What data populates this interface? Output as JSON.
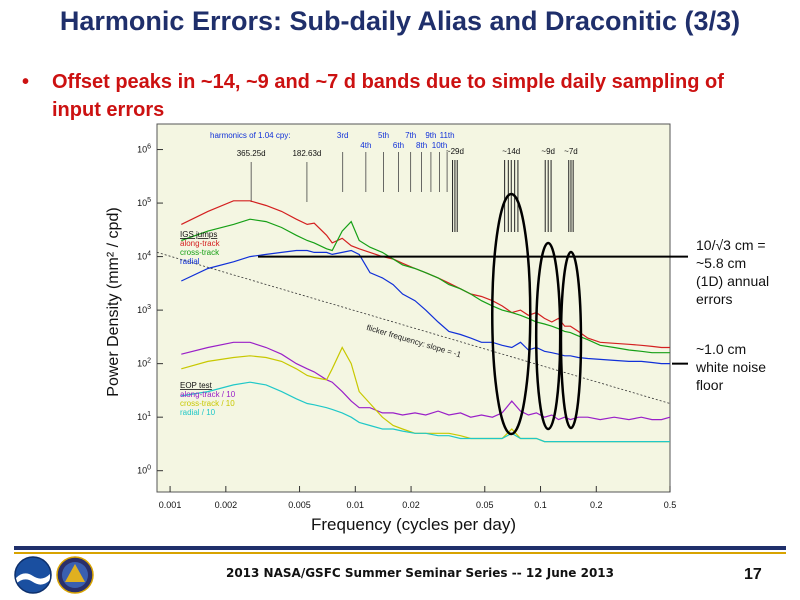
{
  "slide": {
    "title": "Harmonic Errors: Sub-daily Alias and Draconitic (3/3)",
    "bullet_marker": "•",
    "bullet": "Offset peaks in ~14, ~9 and ~7 d bands due to simple daily sampling of input errors",
    "footer": "2013 NASA/GSFC Summer Seminar Series -- 12 June 2013",
    "page_number": "17",
    "logos": [
      "noaa-logo",
      "agency-seal-logo"
    ]
  },
  "annotations": {
    "level_note_lines": [
      "10/√3 cm =",
      "~5.8 cm",
      "(1D) annual",
      "errors"
    ],
    "floor_note_lines": [
      "~1.0 cm",
      "white noise",
      "floor"
    ]
  },
  "chart_data": {
    "type": "line",
    "x_scale": "log",
    "y_scale": "log",
    "xlim": [
      0.00085,
      0.5
    ],
    "ylim": [
      0.4,
      3000000
    ],
    "xlabel": "Frequency (cycles per day)",
    "ylabel": "Power Density  (mm² / cpd)",
    "x_ticks": [
      {
        "value": 0.001,
        "label": "0.001"
      },
      {
        "value": 0.002,
        "label": "0.002"
      },
      {
        "value": 0.005,
        "label": "0.005"
      },
      {
        "value": 0.01,
        "label": "0.01"
      },
      {
        "value": 0.02,
        "label": "0.02"
      },
      {
        "value": 0.05,
        "label": "0.05"
      },
      {
        "value": 0.1,
        "label": "0.1"
      },
      {
        "value": 0.2,
        "label": "0.2"
      },
      {
        "value": 0.5,
        "label": "0.5"
      }
    ],
    "y_ticks": [
      {
        "value": 1,
        "base": "10",
        "exp": "0"
      },
      {
        "value": 10,
        "base": "10",
        "exp": "1"
      },
      {
        "value": 100,
        "base": "10",
        "exp": "2"
      },
      {
        "value": 1000,
        "base": "10",
        "exp": "3"
      },
      {
        "value": 10000,
        "base": "10",
        "exp": "4"
      },
      {
        "value": 100000,
        "base": "10",
        "exp": "5"
      },
      {
        "value": 1000000,
        "base": "10",
        "exp": "6"
      }
    ],
    "harmonics_label": "harmonics of 1.04 cpy:",
    "harmonic_lines": [
      {
        "x": 0.00274,
        "label": "365.25d",
        "row": 2
      },
      {
        "x": 0.00548,
        "label": "182.63d",
        "row": 2
      },
      {
        "x": 0.00855,
        "label": "3rd",
        "row": 0
      },
      {
        "x": 0.0114,
        "label": "4th",
        "row": 1
      },
      {
        "x": 0.0142,
        "label": "5th",
        "row": 0
      },
      {
        "x": 0.0171,
        "label": "6th",
        "row": 1
      },
      {
        "x": 0.0199,
        "label": "7th",
        "row": 0
      },
      {
        "x": 0.0228,
        "label": "8th",
        "row": 1
      },
      {
        "x": 0.0256,
        "label": "9th",
        "row": 0
      },
      {
        "x": 0.0285,
        "label": "10th",
        "row": 1
      },
      {
        "x": 0.0313,
        "label": "11th",
        "row": 0
      }
    ],
    "band_lines": [
      {
        "label": "~29d",
        "x": [
          0.0335,
          0.0345,
          0.0355
        ]
      },
      {
        "label": "~14d",
        "x": [
          0.064,
          0.067,
          0.0695,
          0.0725,
          0.0755
        ]
      },
      {
        "label": "~9d",
        "x": [
          0.106,
          0.11,
          0.114
        ]
      },
      {
        "label": "~7d",
        "x": [
          0.142,
          0.146,
          0.15
        ]
      }
    ],
    "legend_igs": {
      "title": "IGS jumps",
      "entries": [
        {
          "label": "along-track",
          "color": "#d42020"
        },
        {
          "label": "cross-track",
          "color": "#16a016"
        },
        {
          "label": "radial",
          "color": "#1030d8"
        }
      ]
    },
    "legend_eop": {
      "title": "EOP test",
      "entries": [
        {
          "label": "along-track / 10",
          "color": "#9a20c8"
        },
        {
          "label": "cross-track / 10",
          "color": "#c8c800"
        },
        {
          "label": "radial / 10",
          "color": "#20c8c8"
        }
      ]
    },
    "flicker_label": "flicker frequency: slope = -1",
    "flicker_line": {
      "x": [
        0.00085,
        0.5
      ],
      "y": [
        12000,
        18
      ]
    },
    "level_line_y": 10000,
    "floor_line_y": 100,
    "series": [
      {
        "name": "along-track",
        "color": "#d42020",
        "x": [
          0.00115,
          0.0016,
          0.0022,
          0.0027,
          0.0033,
          0.004,
          0.0048,
          0.0055,
          0.006,
          0.007,
          0.0075,
          0.0085,
          0.0095,
          0.0105,
          0.012,
          0.014,
          0.016,
          0.018,
          0.021,
          0.024,
          0.028,
          0.032,
          0.037,
          0.042,
          0.048,
          0.055,
          0.062,
          0.07,
          0.078,
          0.086,
          0.095,
          0.105,
          0.115,
          0.125,
          0.135,
          0.145,
          0.16,
          0.18,
          0.21,
          0.25,
          0.3,
          0.35,
          0.4,
          0.45,
          0.5
        ],
        "y": [
          40000,
          70000,
          110000,
          110000,
          90000,
          70000,
          50000,
          40000,
          42000,
          25000,
          18000,
          22000,
          16000,
          14000,
          12000,
          10000,
          9000,
          7500,
          6000,
          5000,
          4000,
          3200,
          2500,
          2000,
          1800,
          1500,
          1200,
          900,
          1000,
          800,
          900,
          700,
          600,
          700,
          500,
          500,
          400,
          300,
          250,
          240,
          230,
          220,
          210,
          200,
          200
        ]
      },
      {
        "name": "cross-track",
        "color": "#16a016",
        "x": [
          0.00115,
          0.0016,
          0.0022,
          0.0027,
          0.0033,
          0.004,
          0.0048,
          0.0055,
          0.006,
          0.007,
          0.0075,
          0.0085,
          0.0095,
          0.0105,
          0.012,
          0.014,
          0.016,
          0.018,
          0.021,
          0.024,
          0.028,
          0.032,
          0.037,
          0.042,
          0.048,
          0.055,
          0.062,
          0.07,
          0.078,
          0.086,
          0.095,
          0.105,
          0.115,
          0.125,
          0.135,
          0.145,
          0.16,
          0.18,
          0.21,
          0.25,
          0.3,
          0.35,
          0.4,
          0.45,
          0.5
        ],
        "y": [
          20000,
          30000,
          40000,
          50000,
          45000,
          35000,
          25000,
          20000,
          18000,
          14000,
          13000,
          30000,
          45000,
          20000,
          15000,
          12000,
          9000,
          7000,
          6000,
          5000,
          4000,
          3000,
          2500,
          2000,
          1500,
          1200,
          1000,
          900,
          800,
          700,
          600,
          550,
          500,
          450,
          400,
          380,
          330,
          280,
          220,
          200,
          180,
          170,
          160,
          160,
          160
        ]
      },
      {
        "name": "radial",
        "color": "#1030d8",
        "x": [
          0.00115,
          0.0016,
          0.0022,
          0.0027,
          0.0033,
          0.004,
          0.0048,
          0.0055,
          0.006,
          0.007,
          0.0075,
          0.0085,
          0.0095,
          0.0105,
          0.012,
          0.014,
          0.016,
          0.018,
          0.021,
          0.024,
          0.028,
          0.032,
          0.037,
          0.042,
          0.048,
          0.055,
          0.062,
          0.07,
          0.078,
          0.086,
          0.095,
          0.105,
          0.115,
          0.125,
          0.135,
          0.145,
          0.16,
          0.18,
          0.21,
          0.25,
          0.3,
          0.35,
          0.4,
          0.45,
          0.5
        ],
        "y": [
          3500,
          6000,
          8000,
          10000,
          11000,
          12000,
          13000,
          13000,
          12000,
          12000,
          11000,
          12000,
          13000,
          11000,
          5000,
          4000,
          3000,
          2000,
          1500,
          1000,
          600,
          400,
          350,
          300,
          250,
          250,
          220,
          200,
          250,
          180,
          200,
          170,
          160,
          150,
          140,
          140,
          130,
          125,
          120,
          115,
          110,
          110,
          105,
          100,
          100
        ]
      },
      {
        "name": "along-track / 10",
        "color": "#9a20c8",
        "x": [
          0.00115,
          0.0016,
          0.0022,
          0.0027,
          0.0033,
          0.004,
          0.0048,
          0.0055,
          0.006,
          0.007,
          0.0075,
          0.0085,
          0.0095,
          0.0105,
          0.012,
          0.014,
          0.016,
          0.018,
          0.021,
          0.024,
          0.028,
          0.032,
          0.037,
          0.042,
          0.048,
          0.055,
          0.062,
          0.07,
          0.078,
          0.086,
          0.095,
          0.105,
          0.115,
          0.125,
          0.135,
          0.145,
          0.16,
          0.18,
          0.21,
          0.25,
          0.3,
          0.35,
          0.4,
          0.45,
          0.5
        ],
        "y": [
          150,
          200,
          250,
          250,
          200,
          150,
          100,
          80,
          70,
          50,
          45,
          30,
          20,
          15,
          15,
          12,
          12,
          11,
          12,
          11,
          13,
          11,
          12,
          10,
          11,
          10,
          12,
          20,
          13,
          11,
          12,
          10,
          11,
          9,
          10,
          9,
          10,
          10,
          9,
          10,
          9,
          10,
          9,
          9,
          10
        ]
      },
      {
        "name": "cross-track / 10",
        "color": "#c8c800",
        "x": [
          0.00115,
          0.0016,
          0.0022,
          0.0027,
          0.0033,
          0.004,
          0.0048,
          0.0055,
          0.006,
          0.007,
          0.0075,
          0.0085,
          0.0095,
          0.0105,
          0.012,
          0.014,
          0.016,
          0.018,
          0.021,
          0.024,
          0.028,
          0.032,
          0.037,
          0.042,
          0.048,
          0.055,
          0.062,
          0.07,
          0.078,
          0.086,
          0.095,
          0.105,
          0.115,
          0.125,
          0.135,
          0.145,
          0.16,
          0.18,
          0.21,
          0.25,
          0.3,
          0.35,
          0.4,
          0.45,
          0.5
        ],
        "y": [
          80,
          110,
          130,
          140,
          130,
          110,
          80,
          60,
          55,
          50,
          80,
          200,
          100,
          30,
          18,
          10,
          7,
          6,
          5,
          5,
          5,
          5,
          4.5,
          4,
          4,
          4,
          4,
          6,
          4,
          4,
          4,
          3.5,
          3.5,
          3.5,
          3.5,
          3.5,
          3.5,
          3.5,
          3.5,
          3.5,
          3.5,
          3.5,
          3.5,
          3.5,
          3.5
        ]
      },
      {
        "name": "radial / 10",
        "color": "#20c8c8",
        "x": [
          0.00115,
          0.0016,
          0.0022,
          0.0027,
          0.0033,
          0.004,
          0.0048,
          0.0055,
          0.006,
          0.007,
          0.0075,
          0.0085,
          0.0095,
          0.0105,
          0.012,
          0.014,
          0.016,
          0.018,
          0.021,
          0.024,
          0.028,
          0.032,
          0.037,
          0.042,
          0.048,
          0.055,
          0.062,
          0.07,
          0.078,
          0.086,
          0.095,
          0.105,
          0.115,
          0.125,
          0.135,
          0.145,
          0.16,
          0.18,
          0.21,
          0.25,
          0.3,
          0.35,
          0.4,
          0.45,
          0.5
        ],
        "y": [
          25,
          30,
          40,
          45,
          40,
          30,
          22,
          18,
          17,
          15,
          14,
          12,
          10,
          8,
          7,
          6,
          6,
          5.5,
          5,
          5,
          4.5,
          4.5,
          4,
          4,
          4,
          4,
          4,
          5,
          4,
          4,
          4,
          3.5,
          3.5,
          3.5,
          3.5,
          3.5,
          3.5,
          3.5,
          3.5,
          3.5,
          3.5,
          3.5,
          3.5,
          3.5,
          3.5
        ]
      }
    ]
  }
}
